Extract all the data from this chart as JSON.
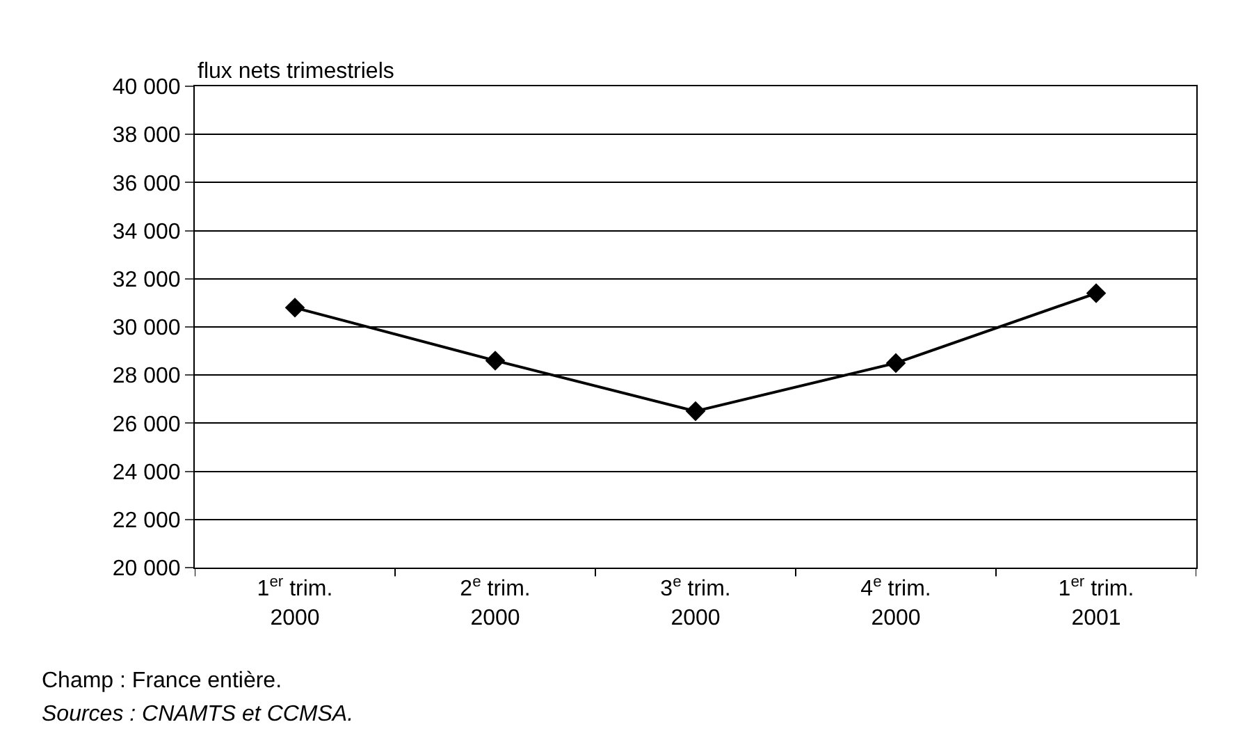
{
  "chart_data": {
    "type": "line",
    "ylabel": "flux nets trimestriels",
    "categories": [
      "1$^{er}$ trim.\n2000",
      "2$^{e}$ trim.\n2000",
      "3$^{e}$ trim.\n2000",
      "4$^{e}$ trim.\n2000",
      "1$^{er}$ trim.\n2001"
    ],
    "series": [
      {
        "color": "#000000",
        "values": [
          30800,
          28600,
          26500,
          28500,
          31400
        ]
      }
    ],
    "ylim": [
      20000,
      40000
    ],
    "yticks": [
      {
        "value": 20000,
        "label": "20 000"
      },
      {
        "value": 22000,
        "label": "22 000"
      },
      {
        "value": 24000,
        "label": "24 000"
      },
      {
        "value": 26000,
        "label": "26 000"
      },
      {
        "value": 28000,
        "label": "28 000"
      },
      {
        "value": 30000,
        "label": "30 000"
      },
      {
        "value": 32000,
        "label": "32 000"
      },
      {
        "value": 34000,
        "label": "34 000"
      },
      {
        "value": 36000,
        "label": "36 000"
      },
      {
        "value": 38000,
        "label": "38 000"
      },
      {
        "value": 40000,
        "label": "40 000"
      }
    ],
    "grid": "y",
    "marker": "diamond",
    "line_style": "solid",
    "legend": false,
    "annotations": [
      "Champ : France entière.",
      "Sources : CNAMTS et CCMSA."
    ]
  }
}
